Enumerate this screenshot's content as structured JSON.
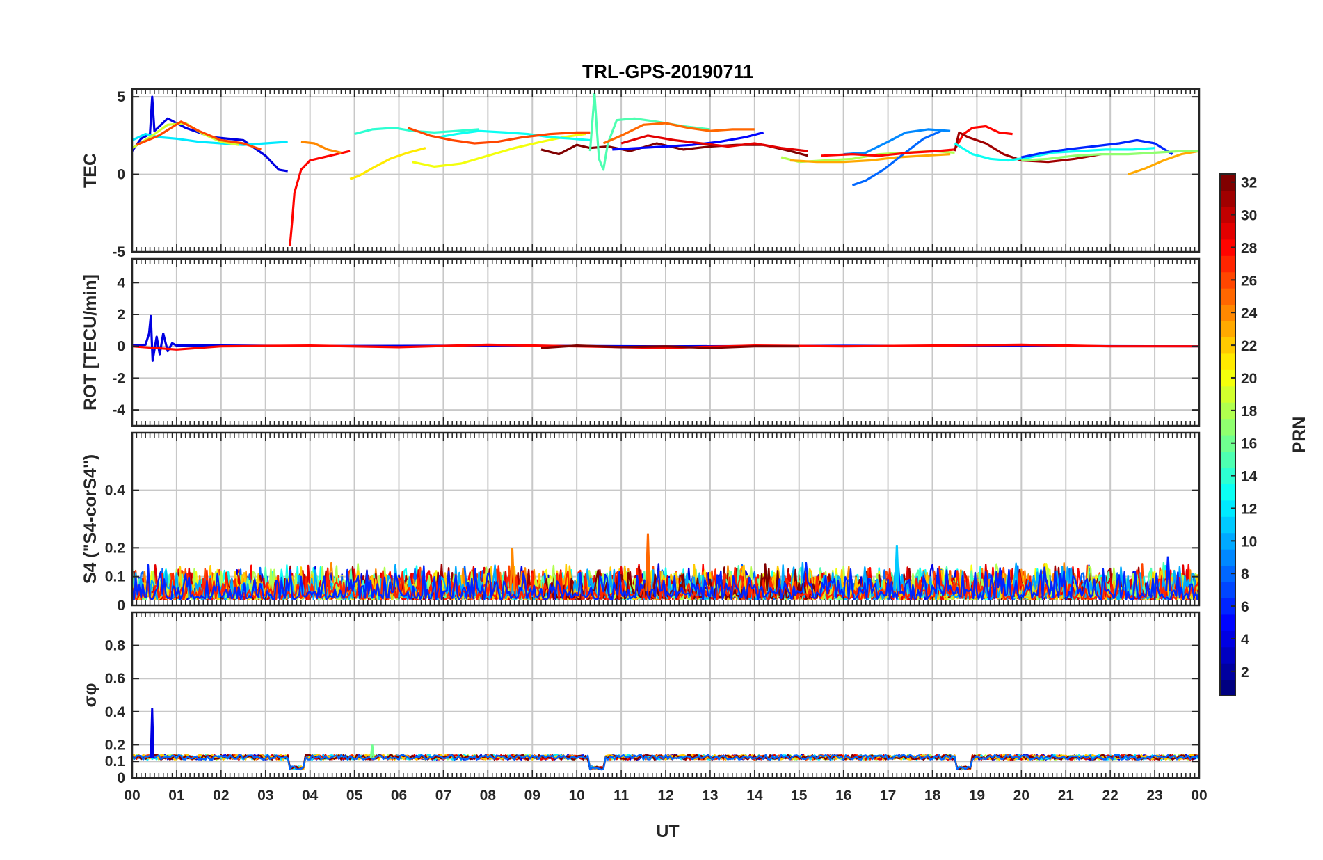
{
  "chart_data": {
    "type": "line",
    "title": "TRL-GPS-20190711",
    "xlabel": "UT",
    "x_ticks": [
      "00",
      "01",
      "02",
      "03",
      "04",
      "05",
      "06",
      "07",
      "08",
      "09",
      "10",
      "11",
      "12",
      "13",
      "14",
      "15",
      "16",
      "17",
      "18",
      "19",
      "20",
      "21",
      "22",
      "23",
      "00"
    ],
    "xlim": [
      0,
      24
    ],
    "grid": true,
    "colorbar": {
      "label": "PRN",
      "range": [
        1,
        32
      ],
      "ticks": [
        "2",
        "4",
        "6",
        "8",
        "10",
        "12",
        "14",
        "16",
        "18",
        "20",
        "22",
        "24",
        "26",
        "28",
        "30",
        "32"
      ],
      "colormap": "jet"
    },
    "panels": [
      {
        "ylabel": "TEC",
        "ylim": [
          -5,
          5.5
        ],
        "y_ticks": [
          "-5",
          "0",
          "5"
        ],
        "series": [
          {
            "prn": 4,
            "x": [
              0.0,
              0.2,
              0.4,
              0.45,
              0.5,
              0.8,
              1.2,
              1.8,
              2.5,
              3.0,
              3.3,
              3.5
            ],
            "y": [
              1.5,
              2.3,
              2.6,
              5.0,
              2.8,
              3.6,
              3.0,
              2.4,
              2.2,
              1.2,
              0.3,
              0.2
            ]
          },
          {
            "prn": 12,
            "x": [
              0.0,
              0.3,
              0.6,
              1.0,
              1.5,
              2.0,
              2.5,
              3.0,
              3.5
            ],
            "y": [
              2.2,
              2.6,
              2.4,
              2.3,
              2.1,
              2.0,
              1.9,
              2.0,
              2.1
            ]
          },
          {
            "prn": 19,
            "x": [
              0.0,
              0.4,
              0.8,
              1.2,
              1.6,
              2.0,
              2.4
            ],
            "y": [
              1.7,
              2.4,
              3.2,
              3.3,
              2.6,
              2.1,
              1.9
            ]
          },
          {
            "prn": 26,
            "x": [
              0.1,
              0.6,
              1.1,
              1.5,
              2.0,
              2.5,
              2.9
            ],
            "y": [
              1.9,
              2.5,
              3.4,
              2.8,
              2.2,
              2.0,
              1.6
            ]
          },
          {
            "prn": 28,
            "x": [
              3.55,
              3.6,
              3.65,
              3.8,
              4.0,
              4.3,
              4.6,
              4.9
            ],
            "y": [
              -4.6,
              -3.0,
              -1.2,
              0.3,
              0.9,
              1.1,
              1.3,
              1.5
            ]
          },
          {
            "prn": 24,
            "x": [
              3.8,
              4.1,
              4.4,
              4.7
            ],
            "y": [
              2.1,
              2.0,
              1.6,
              1.4
            ]
          },
          {
            "prn": 21,
            "x": [
              4.9,
              5.1,
              5.4,
              5.8,
              6.2,
              6.6
            ],
            "y": [
              -0.3,
              -0.1,
              0.4,
              1.0,
              1.4,
              1.7
            ]
          },
          {
            "prn": 14,
            "x": [
              5.0,
              5.4,
              5.9,
              6.3,
              6.8,
              7.3,
              7.8
            ],
            "y": [
              2.6,
              2.9,
              3.0,
              2.8,
              2.7,
              2.8,
              2.9
            ]
          },
          {
            "prn": 20,
            "x": [
              6.3,
              6.8,
              7.4,
              8.0,
              8.6,
              9.2,
              9.7,
              10.2
            ],
            "y": [
              0.8,
              0.5,
              0.7,
              1.2,
              1.7,
              2.1,
              2.4,
              2.6
            ]
          },
          {
            "prn": 13,
            "x": [
              6.9,
              7.3,
              7.8,
              8.4,
              8.9,
              9.4,
              9.9,
              10.3
            ],
            "y": [
              2.4,
              2.6,
              2.8,
              2.7,
              2.6,
              2.4,
              2.3,
              2.2
            ]
          },
          {
            "prn": 26,
            "x": [
              6.2,
              6.7,
              7.2,
              7.7,
              8.2,
              8.8,
              9.4,
              10.0,
              10.3
            ],
            "y": [
              3.0,
              2.5,
              2.2,
              2.0,
              2.1,
              2.4,
              2.6,
              2.7,
              2.7
            ]
          },
          {
            "prn": 32,
            "x": [
              9.2,
              9.6,
              10.0,
              10.3,
              10.7,
              11.2,
              11.8,
              12.4,
              13.0,
              13.6,
              14.2,
              14.8,
              15.2
            ],
            "y": [
              1.6,
              1.3,
              1.9,
              1.7,
              1.8,
              1.5,
              2.0,
              1.6,
              1.8,
              1.9,
              1.9,
              1.5,
              1.2
            ]
          },
          {
            "prn": 15,
            "x": [
              10.3,
              10.4,
              10.45,
              10.5,
              10.6,
              10.7,
              10.9,
              11.3,
              11.8,
              12.4,
              13.0
            ],
            "y": [
              1.5,
              5.2,
              3.0,
              1.0,
              0.3,
              2.0,
              3.5,
              3.6,
              3.4,
              3.1,
              2.9
            ]
          },
          {
            "prn": 25,
            "x": [
              10.6,
              11.0,
              11.5,
              12.0,
              12.5,
              13.0,
              13.5,
              14.0
            ],
            "y": [
              2.0,
              2.5,
              3.2,
              3.3,
              3.0,
              2.8,
              2.9,
              2.9
            ]
          },
          {
            "prn": 5,
            "x": [
              10.8,
              11.4,
              12.0,
              12.6,
              13.2,
              13.8,
              14.2
            ],
            "y": [
              1.6,
              1.7,
              1.8,
              1.9,
              2.1,
              2.4,
              2.7
            ]
          },
          {
            "prn": 29,
            "x": [
              11.0,
              11.6,
              12.2,
              12.8,
              13.4,
              14.0,
              14.6,
              15.2
            ],
            "y": [
              2.0,
              2.5,
              2.2,
              2.0,
              1.8,
              2.0,
              1.7,
              1.5
            ]
          },
          {
            "prn": 18,
            "x": [
              14.6,
              15.0,
              15.6,
              16.2,
              16.8,
              17.4,
              18.0,
              18.5
            ],
            "y": [
              1.1,
              0.8,
              0.9,
              1.0,
              1.3,
              1.4,
              1.5,
              1.4
            ]
          },
          {
            "prn": 23,
            "x": [
              14.8,
              15.4,
              16.0,
              16.6,
              17.2,
              17.8,
              18.4
            ],
            "y": [
              0.9,
              0.8,
              0.8,
              0.9,
              1.1,
              1.2,
              1.3
            ]
          },
          {
            "prn": 8,
            "x": [
              16.2,
              16.5,
              16.9,
              17.3,
              17.8,
              18.2
            ],
            "y": [
              -0.7,
              -0.4,
              0.3,
              1.2,
              2.3,
              2.8
            ]
          },
          {
            "prn": 9,
            "x": [
              16.0,
              16.5,
              17.0,
              17.4,
              17.9,
              18.4
            ],
            "y": [
              1.3,
              1.4,
              2.1,
              2.7,
              2.9,
              2.8
            ]
          },
          {
            "prn": 28,
            "x": [
              15.5,
              16.2,
              16.8,
              17.5,
              18.1,
              18.5,
              18.7,
              18.9,
              19.2,
              19.5,
              19.8
            ],
            "y": [
              1.2,
              1.3,
              1.2,
              1.4,
              1.5,
              1.6,
              2.6,
              3.0,
              3.1,
              2.7,
              2.6
            ]
          },
          {
            "prn": 31,
            "x": [
              18.5,
              18.6,
              18.8,
              19.2,
              19.6,
              20.0,
              20.6,
              21.2,
              21.8
            ],
            "y": [
              1.5,
              2.7,
              2.4,
              2.0,
              1.3,
              0.9,
              0.8,
              1.0,
              1.3
            ]
          },
          {
            "prn": 13,
            "x": [
              18.5,
              18.9,
              19.3,
              19.7,
              20.2,
              20.7,
              21.3,
              21.9,
              22.5,
              23.0
            ],
            "y": [
              2.0,
              1.3,
              1.0,
              0.9,
              1.1,
              1.4,
              1.5,
              1.6,
              1.6,
              1.7
            ]
          },
          {
            "prn": 6,
            "x": [
              20.0,
              20.5,
              21.0,
              21.6,
              22.2,
              22.6,
              23.0,
              23.4
            ],
            "y": [
              1.1,
              1.4,
              1.6,
              1.8,
              2.0,
              2.2,
              2.0,
              1.3
            ]
          },
          {
            "prn": 23,
            "x": [
              22.4,
              22.8,
              23.2,
              23.6,
              24.0
            ],
            "y": [
              0.0,
              0.4,
              0.9,
              1.3,
              1.5
            ]
          },
          {
            "prn": 17,
            "x": [
              20.0,
              20.6,
              21.2,
              21.8,
              22.4,
              23.0,
              23.6,
              24.0
            ],
            "y": [
              0.9,
              1.0,
              1.2,
              1.3,
              1.3,
              1.4,
              1.5,
              1.5
            ]
          }
        ]
      },
      {
        "ylabel": "ROT [TECU/min]",
        "ylim": [
          -5,
          5.5
        ],
        "y_ticks": [
          "-4",
          "-2",
          "0",
          "2",
          "4"
        ],
        "series": [
          {
            "prn": 4,
            "x": [
              0.0,
              0.3,
              0.38,
              0.42,
              0.46,
              0.55,
              0.62,
              0.7,
              0.8,
              0.9,
              1.0,
              2.0,
              4.0,
              8.0,
              12.0,
              16.0,
              20.0,
              24.0
            ],
            "y": [
              0.05,
              0.1,
              0.8,
              1.9,
              -0.9,
              0.6,
              -0.5,
              0.8,
              -0.3,
              0.2,
              0.05,
              0.05,
              0.02,
              0.04,
              0.0,
              0.03,
              0.02,
              0.0
            ]
          },
          {
            "prn": 28,
            "x": [
              0.0,
              1.0,
              2.0,
              4.0,
              6.0,
              8.0,
              10.0,
              12.0,
              14.0,
              16.0,
              18.0,
              20.0,
              22.0,
              24.0
            ],
            "y": [
              0.0,
              -0.2,
              0.0,
              0.05,
              -0.05,
              0.1,
              0.0,
              -0.1,
              0.05,
              0.0,
              0.05,
              0.1,
              0.0,
              0.0
            ]
          },
          {
            "prn": 32,
            "x": [
              9.2,
              10.0,
              11.0,
              12.0,
              13.0,
              14.0,
              15.0
            ],
            "y": [
              -0.1,
              0.05,
              -0.05,
              0.0,
              -0.1,
              0.0,
              0.0
            ]
          }
        ]
      },
      {
        "ylabel": "S4 (\"S4-corS4\")",
        "ylim": [
          0,
          0.6
        ],
        "y_ticks": [
          "0",
          "0.1",
          "0.2",
          "0.4"
        ],
        "typical_range": [
          0.02,
          0.12
        ],
        "peaks": [
          {
            "prn": 24,
            "x": 8.55,
            "y": 0.2
          },
          {
            "prn": 25,
            "x": 11.6,
            "y": 0.25
          },
          {
            "prn": 11,
            "x": 17.2,
            "y": 0.21
          },
          {
            "prn": 6,
            "x": 23.3,
            "y": 0.17
          }
        ]
      },
      {
        "ylabel": "σφ",
        "ylim": [
          0,
          1.0
        ],
        "y_ticks": [
          "0",
          "0.1",
          "0.2",
          "0.4",
          "0.6",
          "0.8"
        ],
        "baseline": 0.12,
        "dropouts": [
          [
            3.5,
            3.85
          ],
          [
            10.3,
            10.65
          ],
          [
            18.55,
            18.9
          ]
        ],
        "peaks": [
          {
            "prn": 4,
            "x": 0.45,
            "y": 0.42
          },
          {
            "prn": 16,
            "x": 5.4,
            "y": 0.2
          }
        ]
      }
    ]
  }
}
